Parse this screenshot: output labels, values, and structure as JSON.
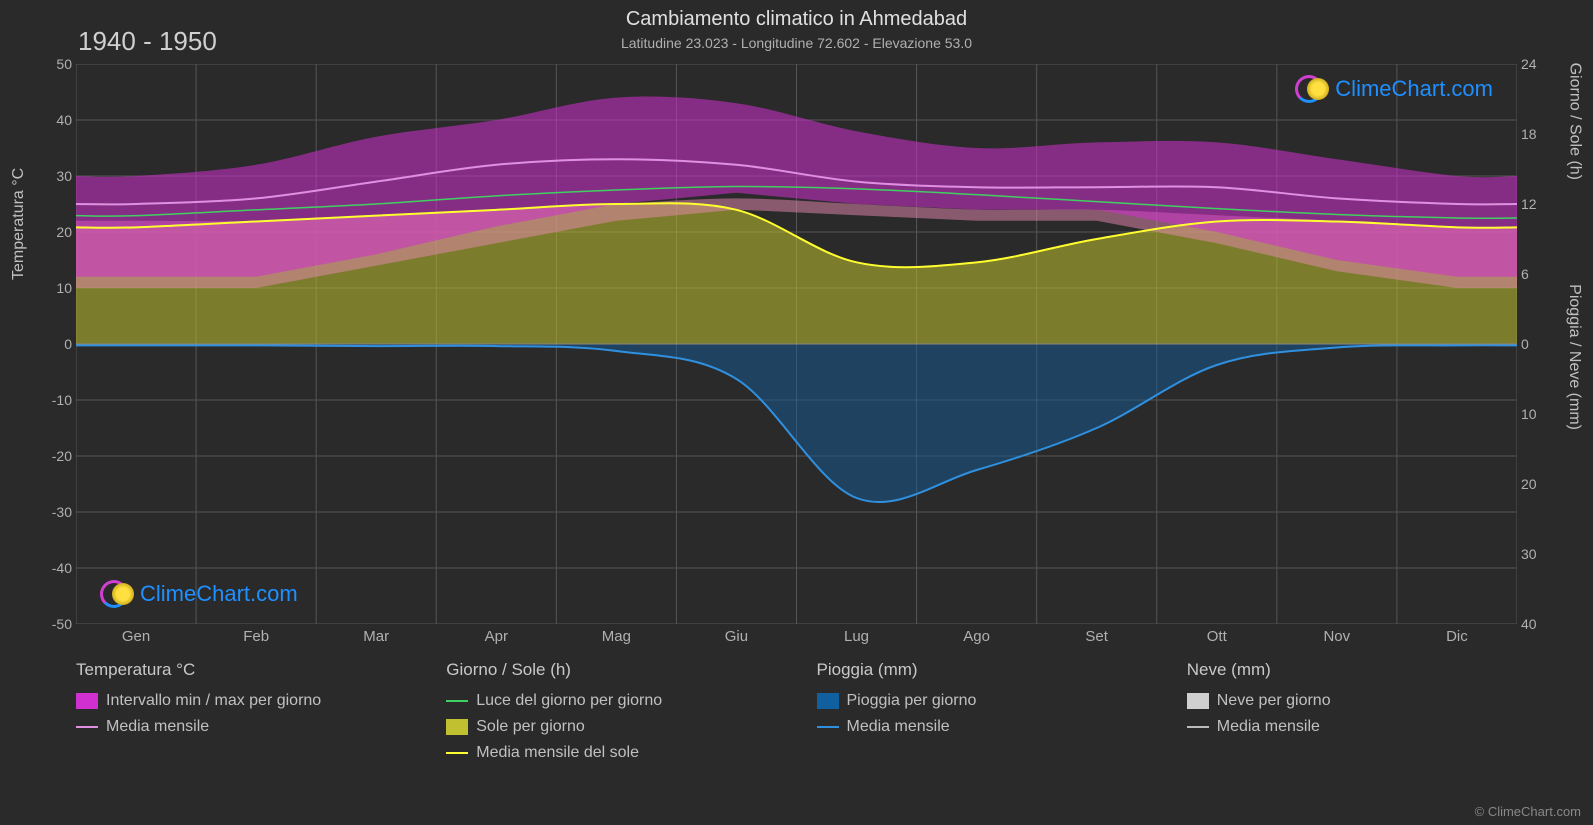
{
  "title": "Cambiamento climatico in Ahmedabad",
  "subtitle": "Latitudine 23.023 - Longitudine 72.602 - Elevazione 53.0",
  "year_range": "1940 - 1950",
  "watermark_text": "ClimeChart.com",
  "copyright": "© ClimeChart.com",
  "y_left_axis": {
    "label": "Temperatura °C",
    "min": -50,
    "max": 50,
    "ticks": [
      50,
      40,
      30,
      20,
      10,
      0,
      -10,
      -20,
      -30,
      -40,
      -50
    ]
  },
  "y_right_axis_top": {
    "label": "Giorno / Sole (h)",
    "ticks": [
      24,
      18,
      12,
      6,
      0
    ]
  },
  "y_right_axis_bot": {
    "label": "Pioggia / Neve (mm)",
    "ticks": [
      10,
      20,
      30,
      40
    ]
  },
  "x_axis": {
    "months": [
      "Gen",
      "Feb",
      "Mar",
      "Apr",
      "Mag",
      "Giu",
      "Lug",
      "Ago",
      "Set",
      "Ott",
      "Nov",
      "Dic"
    ]
  },
  "grid_color": "#555555",
  "background_color": "#2a2a2a",
  "chart": {
    "type": "climate-composite",
    "temp_range_band": {
      "color": "#d030d0",
      "opacity": 0.55,
      "min": [
        12,
        12,
        16,
        21,
        25,
        27,
        25,
        24,
        24,
        20,
        15,
        12
      ],
      "max": [
        30,
        32,
        37,
        40,
        44,
        43,
        38,
        35,
        36,
        36,
        33,
        30
      ]
    },
    "temp_pink_band": {
      "color": "#e88ab0",
      "opacity": 0.5,
      "min": [
        10,
        10,
        14,
        18,
        22,
        24,
        23,
        22,
        22,
        18,
        13,
        10
      ],
      "max": [
        22,
        22,
        23,
        24,
        25,
        26,
        25,
        24,
        24,
        23,
        22,
        21
      ]
    },
    "temp_monthly_mean": {
      "color": "#e090e0",
      "width": 2,
      "values": [
        25,
        26,
        29,
        32,
        33,
        32,
        29,
        28,
        28,
        28,
        26,
        25
      ]
    },
    "daylight": {
      "color": "#40d060",
      "width": 1.5,
      "values_h": [
        11,
        11.5,
        12,
        12.7,
        13.2,
        13.5,
        13.3,
        12.8,
        12.2,
        11.6,
        11.1,
        10.8
      ]
    },
    "sunshine_fill": {
      "color": "#c0c030",
      "opacity": 0.55,
      "values_h": [
        10,
        10.5,
        11,
        11.5,
        12,
        11.5,
        7,
        7,
        9,
        10.5,
        10.5,
        10
      ]
    },
    "sunshine_monthly": {
      "color": "#ffff30",
      "width": 2,
      "values_h": [
        10,
        10.5,
        11,
        11.5,
        12,
        11.5,
        7,
        7,
        9,
        10.5,
        10.5,
        10
      ]
    },
    "rain_fill": {
      "color": "#1060a0",
      "opacity": 0.45,
      "values_mm": [
        0.2,
        0.2,
        0.3,
        0.3,
        1,
        5,
        22,
        18,
        12,
        3,
        0.5,
        0.2
      ]
    },
    "rain_monthly": {
      "color": "#3090e0",
      "width": 2,
      "values_mm": [
        0.2,
        0.2,
        0.3,
        0.3,
        1,
        5,
        22,
        18,
        12,
        3,
        0.5,
        0.2
      ]
    },
    "snow_fill": {
      "color": "#d0d0d0",
      "values_mm": [
        0,
        0,
        0,
        0,
        0,
        0,
        0,
        0,
        0,
        0,
        0,
        0
      ]
    }
  },
  "legend": {
    "temp": {
      "header": "Temperatura °C",
      "range_label": "Intervallo min / max per giorno",
      "range_color": "#d030d0",
      "mean_label": "Media mensile",
      "mean_color": "#e090e0"
    },
    "day": {
      "header": "Giorno / Sole (h)",
      "daylight_label": "Luce del giorno per giorno",
      "daylight_color": "#40d060",
      "sun_label": "Sole per giorno",
      "sun_color": "#c0c030",
      "sun_mean_label": "Media mensile del sole",
      "sun_mean_color": "#ffff30"
    },
    "rain": {
      "header": "Pioggia (mm)",
      "daily_label": "Pioggia per giorno",
      "daily_color": "#1060a0",
      "mean_label": "Media mensile",
      "mean_color": "#3090e0"
    },
    "snow": {
      "header": "Neve (mm)",
      "daily_label": "Neve per giorno",
      "daily_color": "#d0d0d0",
      "mean_label": "Media mensile",
      "mean_color": "#bbbbbb"
    }
  }
}
